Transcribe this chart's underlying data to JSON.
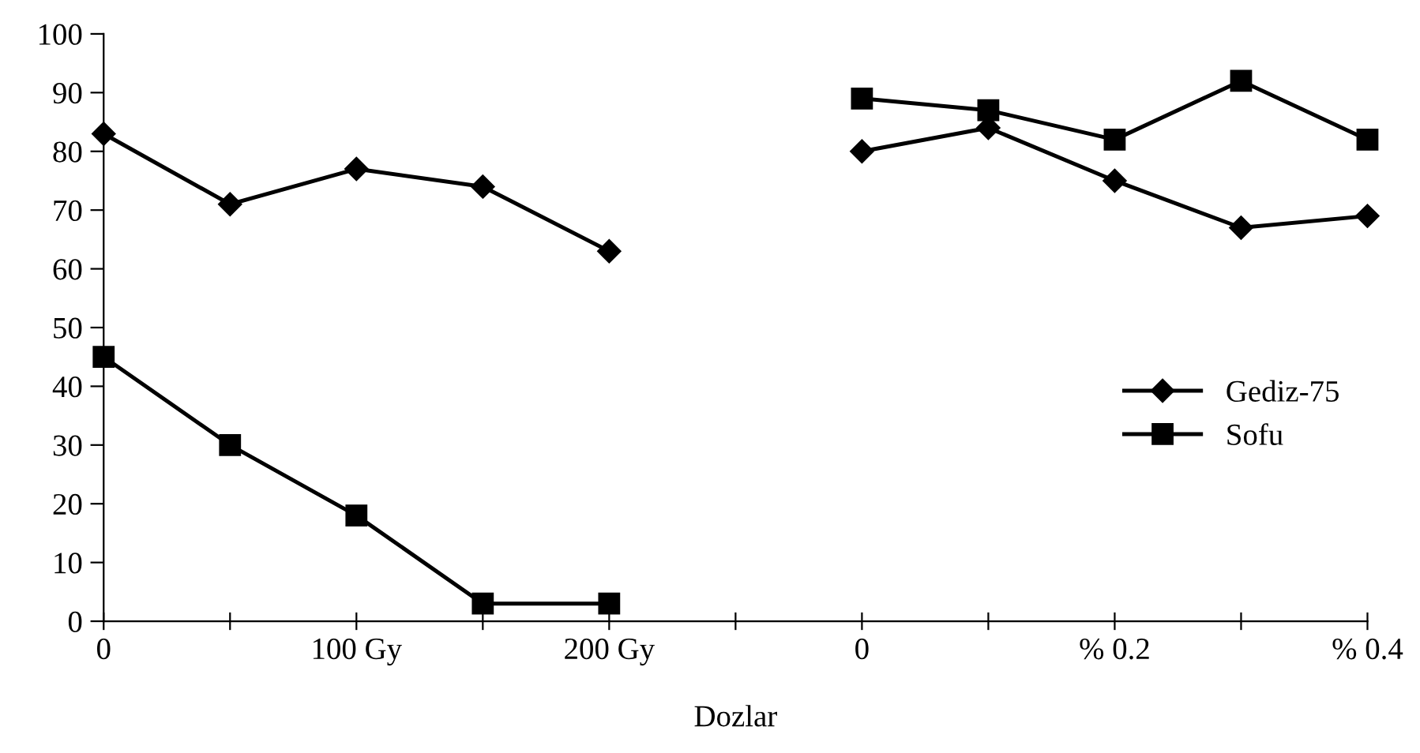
{
  "chart_data": {
    "type": "line",
    "xlabel": "Dozlar",
    "categories": [
      "0",
      null,
      "100 Gy",
      null,
      "200 Gy",
      null,
      "0",
      null,
      "% 0.2",
      null,
      "% 0.4"
    ],
    "series": [
      {
        "name": "Gediz-75",
        "color": "#000000",
        "marker": "diamond",
        "values": [
          83,
          71,
          77,
          74,
          63,
          null,
          80,
          84,
          75,
          67,
          69
        ]
      },
      {
        "name": "Sofu",
        "color": "#000000",
        "marker": "square",
        "values": [
          45,
          30,
          18,
          3,
          3,
          null,
          89,
          87,
          82,
          92,
          82
        ]
      }
    ],
    "ylim": [
      0,
      100
    ],
    "yticks": [
      0,
      10,
      20,
      30,
      40,
      50,
      60,
      70,
      80,
      90,
      100
    ],
    "grid": false,
    "legend": "right",
    "line_style": "solid"
  }
}
